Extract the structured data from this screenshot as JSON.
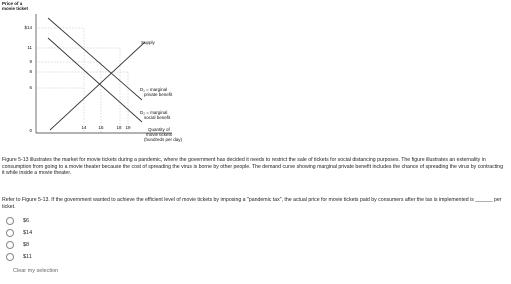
{
  "figure": {
    "y_axis_label": [
      "Price of a",
      "movie ticket"
    ],
    "y_ticks": [
      "$14",
      "11",
      "9",
      "8",
      "6",
      "0"
    ],
    "x_ticks": [
      "14",
      "16",
      "18",
      "19"
    ],
    "supply_label": "Supply",
    "d1_label": [
      "D₁ = marginal",
      "private benefit"
    ],
    "d2_label": [
      "D₂ = marginal",
      "social benefit"
    ],
    "x_axis_label": [
      "Quantity of",
      "movie tickets",
      "(hundreds per day)"
    ]
  },
  "description": "Figure 5-13 illustrates the market for movie tickets during a pandemic, where the government has decided it needs to restrict the sale of tickets for social distancing purposes. The figure illustrates an externality in consumption from going to a movie theater because the cost of spreading the virus is borne by other people. The demand curve showing marginal private benefit includes the chance of spreading the virus by contracting it while inside a movie theater.",
  "question": "Refer to Figure 5-13. If the government wanted to achieve the efficient level of movie tickets by imposing a \"pandemic tax\", the actual price for movie tickets paid by consumers after the tax is implemented is ______ per ticket.",
  "options": [
    "$6",
    "$14",
    "$8",
    "$11"
  ],
  "clear_label": "Clear my selection"
}
